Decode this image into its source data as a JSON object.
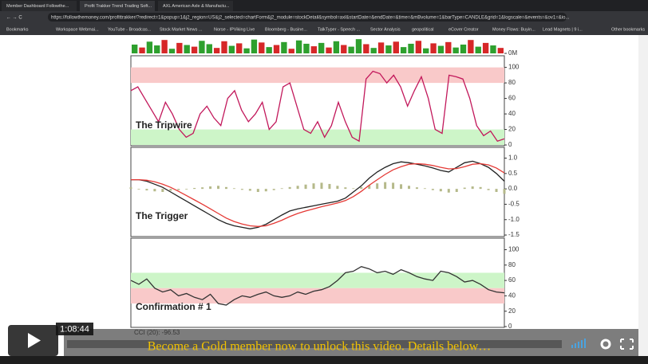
{
  "browser": {
    "tabs": [
      "Member Dashboard Followthe...",
      "Profit Trakker Trend Trading Soft...",
      "AXL American Axle & Manufactu..."
    ],
    "url": "https://followthemoney.com/profittrakker/?redirect=1&popup=1&j2_region=US&j2_selected=chartForm&j2_module=stockDetail&symbol=axl&startDate=&endDate=&time=&mBvolume=1&barType=CANDLE&grid=1&logscale=&events=&ov1=&io...",
    "bookmarks": [
      "Bookmarks",
      "Workspace Webmai...",
      "YouTube - Broadcas...",
      "Stock Market News ...",
      "Norse - IPViking Live",
      "Bloomberg - Busine...",
      "TalkTyper - Speech ...",
      "Sector Analysis",
      "geopolitical",
      "eCover Creator",
      "Money Flows: Buyin...",
      "Lead Magnets | 9 i...",
      "Other bookmarks"
    ]
  },
  "chart": {
    "volume": {
      "ylim": [
        0,
        4
      ],
      "yticks": [
        {
          "value": 0,
          "label": "0M"
        }
      ],
      "values": [
        2.1,
        1.4,
        2.8,
        1.9,
        3.2,
        1.1,
        2.5,
        2.0,
        1.6,
        3.0,
        2.2,
        1.3,
        2.9,
        1.8,
        2.4,
        1.2,
        3.3,
        2.6,
        1.5,
        2.0,
        2.7,
        1.1,
        3.1,
        2.3,
        1.7,
        2.5,
        1.4,
        2.9,
        2.0,
        1.6,
        3.4,
        2.2,
        1.3,
        2.6,
        1.9,
        2.8,
        1.5,
        2.3,
        3.0,
        1.2,
        2.4,
        1.8,
        2.7,
        1.4,
        2.1,
        3.2,
        1.6,
        2.5,
        1.9,
        1.3
      ],
      "colors": [
        "#2ea02e",
        "#d62728",
        "#2ea02e",
        "#2ea02e",
        "#d62728",
        "#2ea02e",
        "#d62728",
        "#2ea02e",
        "#d62728",
        "#2ea02e",
        "#2ea02e",
        "#d62728",
        "#d62728",
        "#2ea02e",
        "#d62728",
        "#2ea02e",
        "#2ea02e",
        "#d62728",
        "#2ea02e",
        "#d62728",
        "#2ea02e",
        "#d62728",
        "#2ea02e",
        "#2ea02e",
        "#d62728",
        "#2ea02e",
        "#d62728",
        "#2ea02e",
        "#d62728",
        "#2ea02e",
        "#2ea02e",
        "#d62728",
        "#2ea02e",
        "#d62728",
        "#2ea02e",
        "#d62728",
        "#2ea02e",
        "#2ea02e",
        "#d62728",
        "#2ea02e",
        "#d62728",
        "#2ea02e",
        "#d62728",
        "#2ea02e",
        "#2ea02e",
        "#d62728",
        "#2ea02e",
        "#d62728",
        "#2ea02e",
        "#d62728"
      ]
    },
    "panels": [
      {
        "label": "The Tripwire",
        "ylim": [
          -1,
          115
        ],
        "yticks": [
          0,
          20,
          40,
          60,
          80,
          100
        ],
        "bands": [
          {
            "range": [
              80,
              100
            ],
            "color": "#f9c9c9"
          },
          {
            "range": [
              0,
              20
            ],
            "color": "#cdf5c8"
          }
        ],
        "series": [
          {
            "color": "#c2185b",
            "values": [
              70,
              75,
              60,
              45,
              30,
              55,
              40,
              20,
              10,
              15,
              40,
              50,
              35,
              25,
              60,
              70,
              45,
              30,
              40,
              55,
              20,
              30,
              75,
              80,
              50,
              20,
              15,
              30,
              10,
              25,
              55,
              30,
              10,
              5,
              85,
              95,
              92,
              80,
              90,
              75,
              50,
              70,
              88,
              60,
              20,
              15,
              90,
              88,
              85,
              60,
              25,
              12,
              18,
              5,
              8
            ]
          }
        ]
      },
      {
        "label": "The Trigger",
        "ylim": [
          -1.55,
          1.35
        ],
        "yticks": [
          {
            "value": -1.5,
            "label": "-1.5"
          },
          {
            "value": -1,
            "label": "-1.0"
          },
          {
            "value": -0.5,
            "label": "-0.5"
          },
          {
            "value": 0,
            "label": "0.0"
          },
          {
            "value": 0.5,
            "label": "0.5"
          },
          {
            "value": 1,
            "label": "1.0"
          }
        ],
        "bands": [],
        "series": [
          {
            "kind": "bar",
            "color": "#b5b98a",
            "values": [
              0.05,
              -0.02,
              -0.05,
              -0.08,
              -0.1,
              -0.06,
              -0.04,
              -0.02,
              0.03,
              0.05,
              0.08,
              0.1,
              0.06,
              0.02,
              -0.03,
              -0.06,
              -0.1,
              -0.08,
              -0.04,
              0.02,
              0.06,
              0.1,
              0.14,
              0.18,
              0.2,
              0.16,
              0.1,
              0.05,
              0.02,
              0.06,
              0.12,
              0.18,
              0.22,
              0.2,
              0.15,
              0.1,
              0.05,
              0.02,
              -0.04,
              -0.08,
              -0.12,
              -0.1,
              0.04,
              0.08,
              0.06,
              -0.04,
              -0.1,
              -0.16
            ]
          },
          {
            "color": "#222222",
            "values": [
              0.3,
              0.3,
              0.25,
              0.15,
              0.05,
              -0.1,
              -0.25,
              -0.4,
              -0.55,
              -0.7,
              -0.85,
              -1.0,
              -1.12,
              -1.2,
              -1.25,
              -1.3,
              -1.25,
              -1.15,
              -1.0,
              -0.85,
              -0.72,
              -0.65,
              -0.6,
              -0.55,
              -0.5,
              -0.45,
              -0.4,
              -0.3,
              -0.1,
              0.1,
              0.35,
              0.55,
              0.7,
              0.82,
              0.88,
              0.85,
              0.8,
              0.75,
              0.68,
              0.6,
              0.55,
              0.7,
              0.85,
              0.9,
              0.82,
              0.7,
              0.5,
              0.25
            ]
          },
          {
            "color": "#e53935",
            "values": [
              0.3,
              0.3,
              0.28,
              0.23,
              0.15,
              0.05,
              -0.08,
              -0.22,
              -0.36,
              -0.5,
              -0.65,
              -0.8,
              -0.95,
              -1.06,
              -1.14,
              -1.2,
              -1.22,
              -1.2,
              -1.12,
              -1.02,
              -0.9,
              -0.8,
              -0.72,
              -0.65,
              -0.58,
              -0.52,
              -0.46,
              -0.38,
              -0.25,
              -0.08,
              0.12,
              0.3,
              0.47,
              0.62,
              0.72,
              0.8,
              0.82,
              0.8,
              0.76,
              0.7,
              0.65,
              0.66,
              0.72,
              0.8,
              0.82,
              0.78,
              0.68,
              0.52
            ]
          }
        ]
      },
      {
        "label": "Confirmation # 1",
        "ylim": [
          -1,
          115
        ],
        "yticks": [
          0,
          20,
          40,
          60,
          80,
          100
        ],
        "bands": [
          {
            "range": [
              50,
              70
            ],
            "color": "#cdf5c8"
          },
          {
            "range": [
              30,
              50
            ],
            "color": "#f9c9c9"
          }
        ],
        "series": [
          {
            "color": "#333333",
            "values": [
              60,
              55,
              62,
              50,
              45,
              48,
              40,
              43,
              38,
              35,
              42,
              30,
              28,
              35,
              40,
              38,
              42,
              45,
              40,
              38,
              40,
              45,
              42,
              46,
              48,
              52,
              60,
              70,
              72,
              78,
              75,
              70,
              72,
              68,
              74,
              70,
              65,
              62,
              60,
              72,
              70,
              65,
              58,
              60,
              55,
              48,
              45,
              44
            ]
          }
        ]
      }
    ],
    "footer_label": "CCI (20): -96.53"
  },
  "video": {
    "time": "1:08:44",
    "banner": "Become a Gold member now to unlock this video. Details below…"
  }
}
